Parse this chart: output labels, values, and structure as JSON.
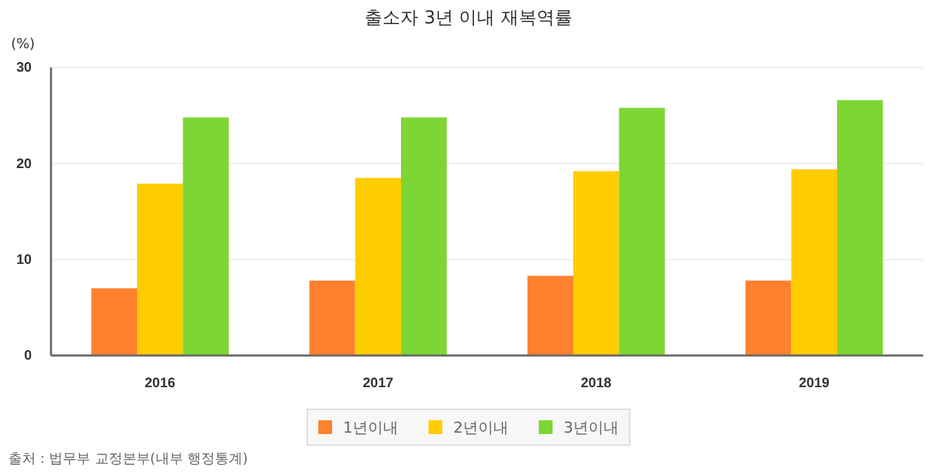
{
  "chart_data": {
    "type": "bar",
    "title": "출소자 3년 이내 재복역률",
    "ylabel": "(%)",
    "categories": [
      "2016",
      "2017",
      "2018",
      "2019"
    ],
    "series": [
      {
        "name": "1년이내",
        "color": "#ff802e",
        "values": [
          7.0,
          7.8,
          8.3,
          7.8
        ]
      },
      {
        "name": "2년이내",
        "color": "#ffcc00",
        "values": [
          17.9,
          18.5,
          19.2,
          19.4
        ]
      },
      {
        "name": "3년이내",
        "color": "#7dd633",
        "values": [
          24.8,
          24.8,
          25.8,
          26.6
        ]
      }
    ],
    "ylim": [
      0,
      30
    ],
    "yticks": [
      0,
      10,
      20,
      30
    ],
    "grid": "y",
    "legend": "bottom",
    "annotations": [
      "출처 : 법무부 교정본부(내부 행정통계)"
    ]
  }
}
